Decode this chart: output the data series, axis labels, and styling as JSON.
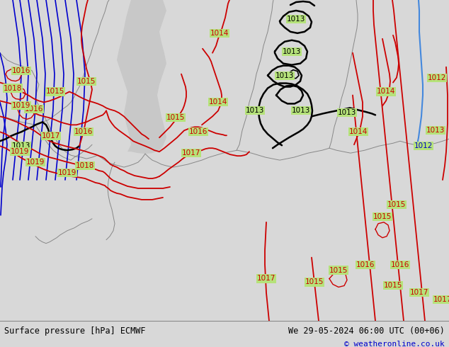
{
  "title_left": "Surface pressure [hPa] ECMWF",
  "title_right": "We 29-05-2024 06:00 UTC (00+06)",
  "copyright": "© weatheronline.co.uk",
  "map_bg": "#b5e27a",
  "sea_color": "#c8c8c8",
  "footer_bg": "#d8d8d8",
  "footer_text_color": "#000000",
  "footer_right_color": "#0000cc",
  "fig_width": 6.34,
  "fig_height": 4.9,
  "dpi": 100,
  "red": "#cc0000",
  "blue_isobar": "#0000cc",
  "black": "#000000",
  "gray_border": "#888888",
  "blue_river": "#4488dd"
}
